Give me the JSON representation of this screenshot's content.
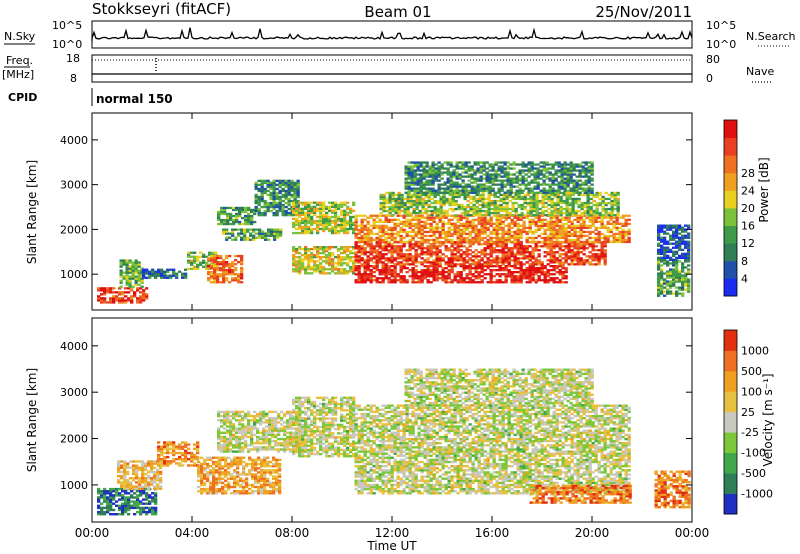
{
  "header": {
    "station": "Stokkseyri (fitACF)",
    "beam": "Beam 01",
    "date": "25/Nov/2011"
  },
  "aux_panels": {
    "noise": {
      "left_label": "N.Sky",
      "right_label": "N.Search",
      "tick_high": "10^5",
      "tick_low": "10^0"
    },
    "freq": {
      "left_label_1": "Freq.",
      "left_label_2": "[MHz]",
      "tick_top": "18",
      "tick_bottom": "8",
      "right_label": "Nave",
      "right_tick_top": "80",
      "right_tick_bottom": "0"
    },
    "cpid": {
      "left_label": "CPID",
      "program": "normal 150"
    }
  },
  "chart_data": [
    {
      "type": "heatmap",
      "title": "",
      "xlabel": "Time UT",
      "ylabel": "Slant Range [km]",
      "x_ticks": [
        "00:00",
        "04:00",
        "08:00",
        "12:00",
        "16:00",
        "20:00",
        "00:00"
      ],
      "y_ticks": [
        "1000",
        "2000",
        "3000",
        "4000"
      ],
      "xlim_hours": [
        0,
        24
      ],
      "ylim_km": [
        200,
        4600
      ],
      "colorbar": {
        "label": "Power [dB]",
        "ticks": [
          "4",
          "8",
          "12",
          "16",
          "20",
          "24",
          "28"
        ],
        "colors": [
          "#1a2cf0",
          "#2050a8",
          "#2f7e58",
          "#3f9a4a",
          "#7cc13a",
          "#e8d020",
          "#f0a020",
          "#ef7020",
          "#e84020",
          "#e01010"
        ]
      },
      "bands": [
        {
          "t0": 0.2,
          "t1": 2.2,
          "r0": 350,
          "r1": 700,
          "v": 0.85
        },
        {
          "t0": 1.1,
          "t1": 2.0,
          "r0": 700,
          "r1": 1300,
          "v": 0.4
        },
        {
          "t0": 2.0,
          "t1": 3.8,
          "r0": 900,
          "r1": 1100,
          "v": 0.2
        },
        {
          "t0": 3.8,
          "t1": 5.0,
          "r0": 1100,
          "r1": 1500,
          "v": 0.45
        },
        {
          "t0": 4.6,
          "t1": 6.0,
          "r0": 800,
          "r1": 1400,
          "v": 0.75
        },
        {
          "t0": 5.2,
          "t1": 7.5,
          "r0": 1750,
          "r1": 2000,
          "v": 0.35
        },
        {
          "t0": 5.0,
          "t1": 6.5,
          "r0": 2100,
          "r1": 2500,
          "v": 0.35
        },
        {
          "t0": 6.5,
          "t1": 8.2,
          "r0": 2300,
          "r1": 3100,
          "v": 0.3
        },
        {
          "t0": 8.0,
          "t1": 10.5,
          "r0": 1900,
          "r1": 2600,
          "v": 0.5
        },
        {
          "t0": 8.0,
          "t1": 10.5,
          "r0": 1000,
          "r1": 1600,
          "v": 0.55
        },
        {
          "t0": 10.5,
          "t1": 19.0,
          "r0": 800,
          "r1": 1200,
          "v": 0.95
        },
        {
          "t0": 10.5,
          "t1": 20.5,
          "r0": 1200,
          "r1": 1700,
          "v": 0.85
        },
        {
          "t0": 10.5,
          "t1": 21.5,
          "r0": 1700,
          "r1": 2300,
          "v": 0.7
        },
        {
          "t0": 11.5,
          "t1": 21.0,
          "r0": 2300,
          "r1": 2800,
          "v": 0.45
        },
        {
          "t0": 12.5,
          "t1": 20.0,
          "r0": 2800,
          "r1": 3500,
          "v": 0.3
        },
        {
          "t0": 22.6,
          "t1": 23.9,
          "r0": 500,
          "r1": 1300,
          "v": 0.35
        },
        {
          "t0": 22.6,
          "t1": 23.9,
          "r0": 1300,
          "r1": 2100,
          "v": 0.15
        }
      ]
    },
    {
      "type": "heatmap",
      "title": "",
      "xlabel": "Time UT",
      "ylabel": "Slant Range [km]",
      "x_ticks": [
        "00:00",
        "04:00",
        "08:00",
        "12:00",
        "16:00",
        "20:00",
        "00:00"
      ],
      "y_ticks": [
        "1000",
        "2000",
        "3000",
        "4000"
      ],
      "xlim_hours": [
        0,
        24
      ],
      "ylim_km": [
        200,
        4600
      ],
      "colorbar": {
        "label": "Velocity [m s⁻¹]",
        "ticks": [
          "1000",
          "500",
          "100",
          "25",
          "-25",
          "-100",
          "-500",
          "-1000"
        ],
        "colors": [
          "#2030c0",
          "#2f7e58",
          "#40a84a",
          "#7cc83a",
          "#c8c8c0",
          "#e8c040",
          "#f0a020",
          "#ef7020",
          "#e03010"
        ]
      },
      "bands": [
        {
          "t0": 0.2,
          "t1": 2.6,
          "r0": 350,
          "r1": 900,
          "v": 0.15
        },
        {
          "t0": 1.0,
          "t1": 2.8,
          "r0": 900,
          "r1": 1500,
          "v": 0.65
        },
        {
          "t0": 2.6,
          "t1": 4.2,
          "r0": 1400,
          "r1": 1900,
          "v": 0.75
        },
        {
          "t0": 4.2,
          "t1": 7.5,
          "r0": 800,
          "r1": 1600,
          "v": 0.7
        },
        {
          "t0": 5.0,
          "t1": 8.5,
          "r0": 1700,
          "r1": 2600,
          "v": 0.5
        },
        {
          "t0": 8.0,
          "t1": 10.5,
          "r0": 1600,
          "r1": 2900,
          "v": 0.5
        },
        {
          "t0": 10.5,
          "t1": 21.5,
          "r0": 800,
          "r1": 2700,
          "v": 0.5
        },
        {
          "t0": 12.5,
          "t1": 20.0,
          "r0": 2700,
          "r1": 3500,
          "v": 0.5
        },
        {
          "t0": 17.5,
          "t1": 21.5,
          "r0": 600,
          "r1": 1000,
          "v": 0.8
        },
        {
          "t0": 22.5,
          "t1": 23.9,
          "r0": 500,
          "r1": 1300,
          "v": 0.8
        }
      ]
    }
  ]
}
